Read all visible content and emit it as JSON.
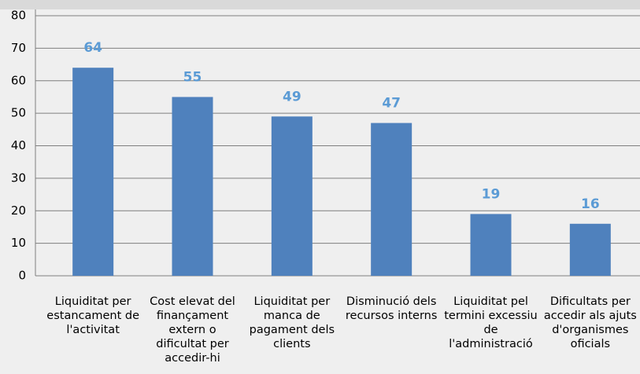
{
  "chart_data": {
    "type": "bar",
    "categories": [
      "Liquiditat per estancament de l'activitat",
      "Cost elevat del finançament extern o dificultat per accedir-hi",
      "Liquiditat per manca de pagament dels clients",
      "Disminució dels recursos interns",
      "Liquiditat pel termini excessiu de l'administració",
      "Dificultats per accedir als ajuts d'organismes oficials"
    ],
    "values": [
      64,
      55,
      49,
      47,
      19,
      16
    ],
    "color": "#4f81bd",
    "value_label_color": "#5b9bd5",
    "ylim": [
      0,
      80
    ],
    "yticks": [
      0,
      10,
      20,
      30,
      40,
      50,
      60,
      70,
      80
    ],
    "grid": true
  }
}
